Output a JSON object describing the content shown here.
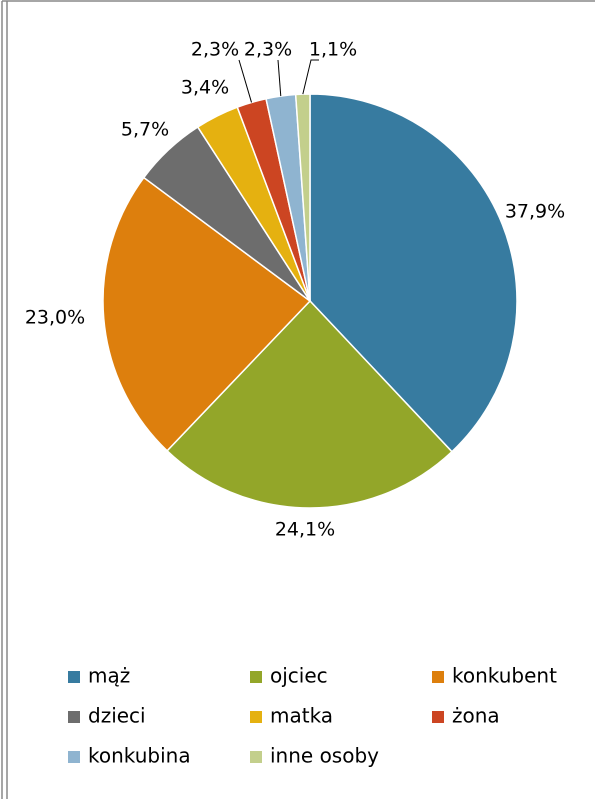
{
  "chart_data": {
    "type": "pie",
    "categories": [
      "mąż",
      "ojciec",
      "konkubent",
      "dzieci",
      "matka",
      "żona",
      "konkubina",
      "inne osoby"
    ],
    "values": [
      37.9,
      24.1,
      23.0,
      5.7,
      3.4,
      2.3,
      2.3,
      1.1
    ],
    "value_labels": [
      "37,9%",
      "24,1%",
      "23,0%",
      "5,7%",
      "3,4%",
      "2,3%",
      "2,3%",
      "1,1%"
    ],
    "colors": [
      "#377ba0",
      "#93a629",
      "#dd7f0d",
      "#6d6d6d",
      "#e5b110",
      "#cc4522",
      "#8fb4d0",
      "#c3cf8c"
    ],
    "legend": "bottom"
  }
}
